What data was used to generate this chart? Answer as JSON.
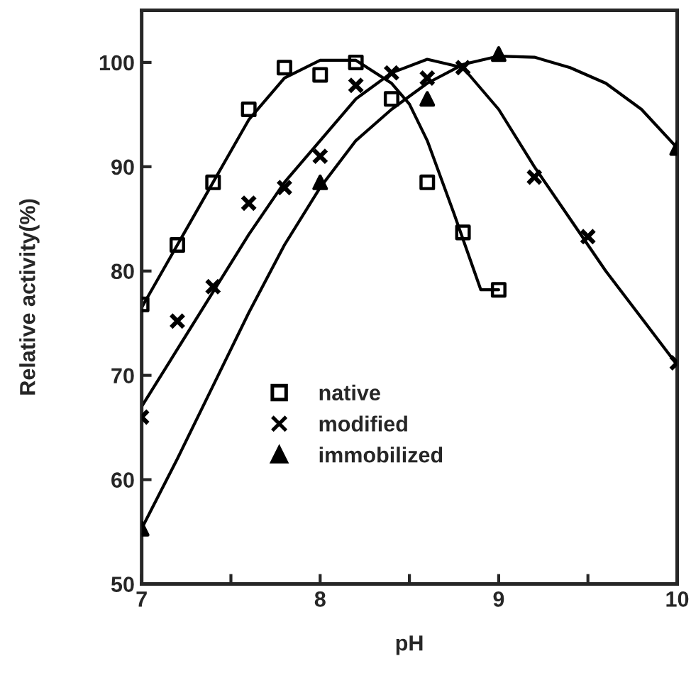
{
  "chart_data": {
    "type": "scatter",
    "xlabel": "pH",
    "ylabel": "Relative activity(%)",
    "xlim": [
      7,
      10
    ],
    "ylim": [
      50,
      105
    ],
    "xticks": [
      7,
      {
        "value": 7.5,
        "label": null
      },
      8,
      {
        "value": 8.5,
        "label": null
      },
      9,
      {
        "value": 9.5,
        "label": null
      },
      10
    ],
    "yticks": [
      50,
      60,
      70,
      80,
      90,
      100
    ],
    "grid": false,
    "legend": "bottom left",
    "series": [
      {
        "name": "native",
        "color": "#000000",
        "marker": "square",
        "x": [
          7,
          7.2,
          7.4,
          7.6,
          7.8,
          8.0,
          8.2,
          8.4,
          8.6,
          8.8,
          9.0
        ],
        "values": [
          76.8,
          82.5,
          88.5,
          95.5,
          99.5,
          98.8,
          100,
          96.5,
          88.5,
          83.7,
          78.2
        ]
      },
      {
        "name": "modified",
        "color": "#000000",
        "marker": "cross",
        "x": [
          7,
          7.2,
          7.4,
          7.6,
          7.8,
          8.0,
          8.2,
          8.4,
          8.6,
          8.8,
          9.2,
          9.5,
          10
        ],
        "values": [
          66,
          75.2,
          78.5,
          86.5,
          88,
          91,
          97.8,
          99,
          98.5,
          99.5,
          89,
          83.3,
          71.2
        ]
      },
      {
        "name": "immobilized",
        "color": "#000000",
        "marker": "triangle",
        "x": [
          7,
          8,
          8.6,
          9.0,
          10
        ],
        "values": [
          55.3,
          88.5,
          96.5,
          100.8,
          91.8
        ]
      },
      {
        "type": "line",
        "color": "#000000",
        "x": [
          7,
          7.2,
          7.4,
          7.6,
          7.8,
          8.0,
          8.2,
          8.4,
          8.5,
          8.6,
          8.75,
          8.9,
          9.0
        ],
        "values": [
          76.5,
          82.5,
          88.5,
          94.5,
          98.5,
          100.2,
          100.2,
          98,
          96,
          92.5,
          85.5,
          78.2,
          78.2
        ]
      },
      {
        "type": "line",
        "color": "#000000",
        "x": [
          7,
          7.2,
          7.4,
          7.6,
          7.8,
          8.0,
          8.2,
          8.4,
          8.6,
          8.8,
          9.0,
          9.2,
          9.4,
          9.6,
          9.8,
          10
        ],
        "values": [
          67,
          72.5,
          78,
          83.5,
          88.5,
          92.5,
          96.5,
          99,
          100.3,
          99.5,
          95.5,
          90,
          85,
          80,
          75.5,
          71
        ]
      },
      {
        "type": "line",
        "color": "#000000",
        "x": [
          7,
          7.2,
          7.4,
          7.6,
          7.8,
          8.0,
          8.2,
          8.4,
          8.6,
          8.8,
          9.0,
          9.2,
          9.4,
          9.6,
          9.8,
          10
        ],
        "values": [
          55.3,
          62,
          69,
          76,
          82.5,
          88,
          92.5,
          95.5,
          98,
          99.8,
          100.6,
          100.5,
          99.5,
          98,
          95.5,
          91.8
        ]
      }
    ]
  }
}
